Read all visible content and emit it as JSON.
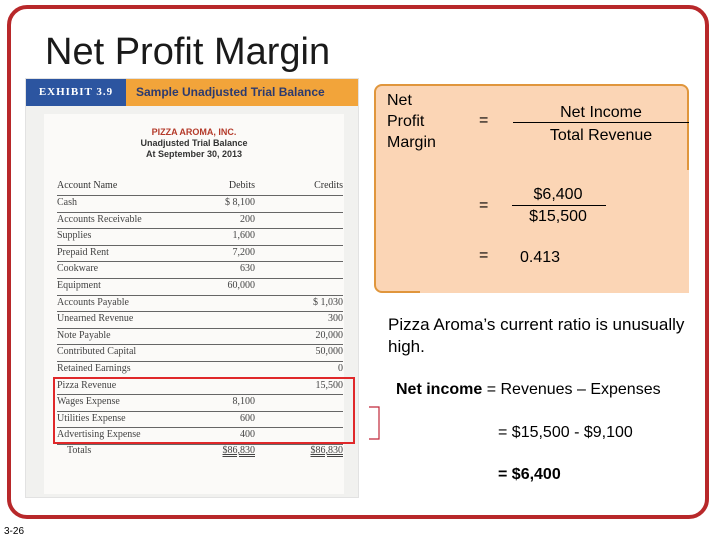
{
  "slide": {
    "title": "Net Profit Margin",
    "number": "3-26"
  },
  "exhibit": {
    "label": "EXHIBIT 3.9",
    "title": "Sample Unadjusted Trial Balance",
    "company": "PIZZA AROMA, INC.",
    "subtitle": "Unadjusted Trial Balance",
    "date": "At September 30, 2013",
    "columns": [
      "Account Name",
      "Debits",
      "Credits"
    ],
    "rows": [
      {
        "account": "Cash",
        "debit": "$ 8,100",
        "credit": ""
      },
      {
        "account": "Accounts Receivable",
        "debit": "200",
        "credit": ""
      },
      {
        "account": "Supplies",
        "debit": "1,600",
        "credit": ""
      },
      {
        "account": "Prepaid Rent",
        "debit": "7,200",
        "credit": ""
      },
      {
        "account": "Cookware",
        "debit": "630",
        "credit": ""
      },
      {
        "account": "Equipment",
        "debit": "60,000",
        "credit": ""
      },
      {
        "account": "Accounts Payable",
        "debit": "",
        "credit": "$ 1,030"
      },
      {
        "account": "Unearned Revenue",
        "debit": "",
        "credit": "300"
      },
      {
        "account": "Note Payable",
        "debit": "",
        "credit": "20,000"
      },
      {
        "account": "Contributed Capital",
        "debit": "",
        "credit": "50,000"
      },
      {
        "account": "Retained Earnings",
        "debit": "",
        "credit": "0"
      },
      {
        "account": "Pizza Revenue",
        "debit": "",
        "credit": "15,500"
      },
      {
        "account": "Wages Expense",
        "debit": "8,100",
        "credit": ""
      },
      {
        "account": "Utilities Expense",
        "debit": "600",
        "credit": ""
      },
      {
        "account": "Advertising Expense",
        "debit": "400",
        "credit": ""
      }
    ],
    "total": {
      "account": "Totals",
      "debit": "$86,830",
      "credit": "$86,830"
    }
  },
  "calc": {
    "label_line1": "Net",
    "label_line2": "Profit",
    "label_line3": "Margin",
    "eq": "=",
    "numerator_label": "Net Income",
    "denominator_label": "Total Revenue",
    "numerator_value": "$6,400",
    "denominator_value": "$15,500",
    "result": "0.413"
  },
  "note": "Pizza Aroma’s current ratio is unusually high.",
  "formula": {
    "bold_part": "Net income",
    "line1_rest": " = Revenues – Expenses",
    "line2": "=  $15,500 -  $9,100",
    "line3": "=  $6,400"
  },
  "colors": {
    "frame": "#b8282a",
    "exhibit_label_bg": "#2c55a0",
    "exhibit_header_bg": "#f2a43a",
    "calc_box_bg": "#fbd5b5",
    "calc_box_border": "#e0963c",
    "highlight": "#e0282a"
  }
}
